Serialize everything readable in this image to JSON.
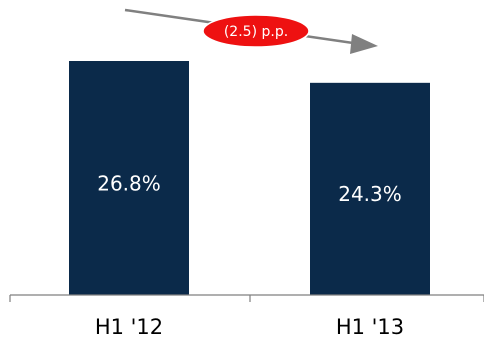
{
  "colors": {
    "bar": "#0b2a4a",
    "axis": "#7f7f7f",
    "arrow": "#808080",
    "badge_fill": "#ee1111",
    "badge_stroke": "#ffffff"
  },
  "chart_data": {
    "type": "bar",
    "categories": [
      "H1 '12",
      "H1 '13"
    ],
    "values": [
      26.8,
      24.3
    ],
    "value_labels": [
      "26.8%",
      "24.3%"
    ],
    "unit": "%",
    "title": "",
    "xlabel": "",
    "ylabel": "",
    "grid": false,
    "legend": "none",
    "annotations": [
      {
        "text": "(2.5) p.p.",
        "type": "change-arrow"
      }
    ]
  }
}
